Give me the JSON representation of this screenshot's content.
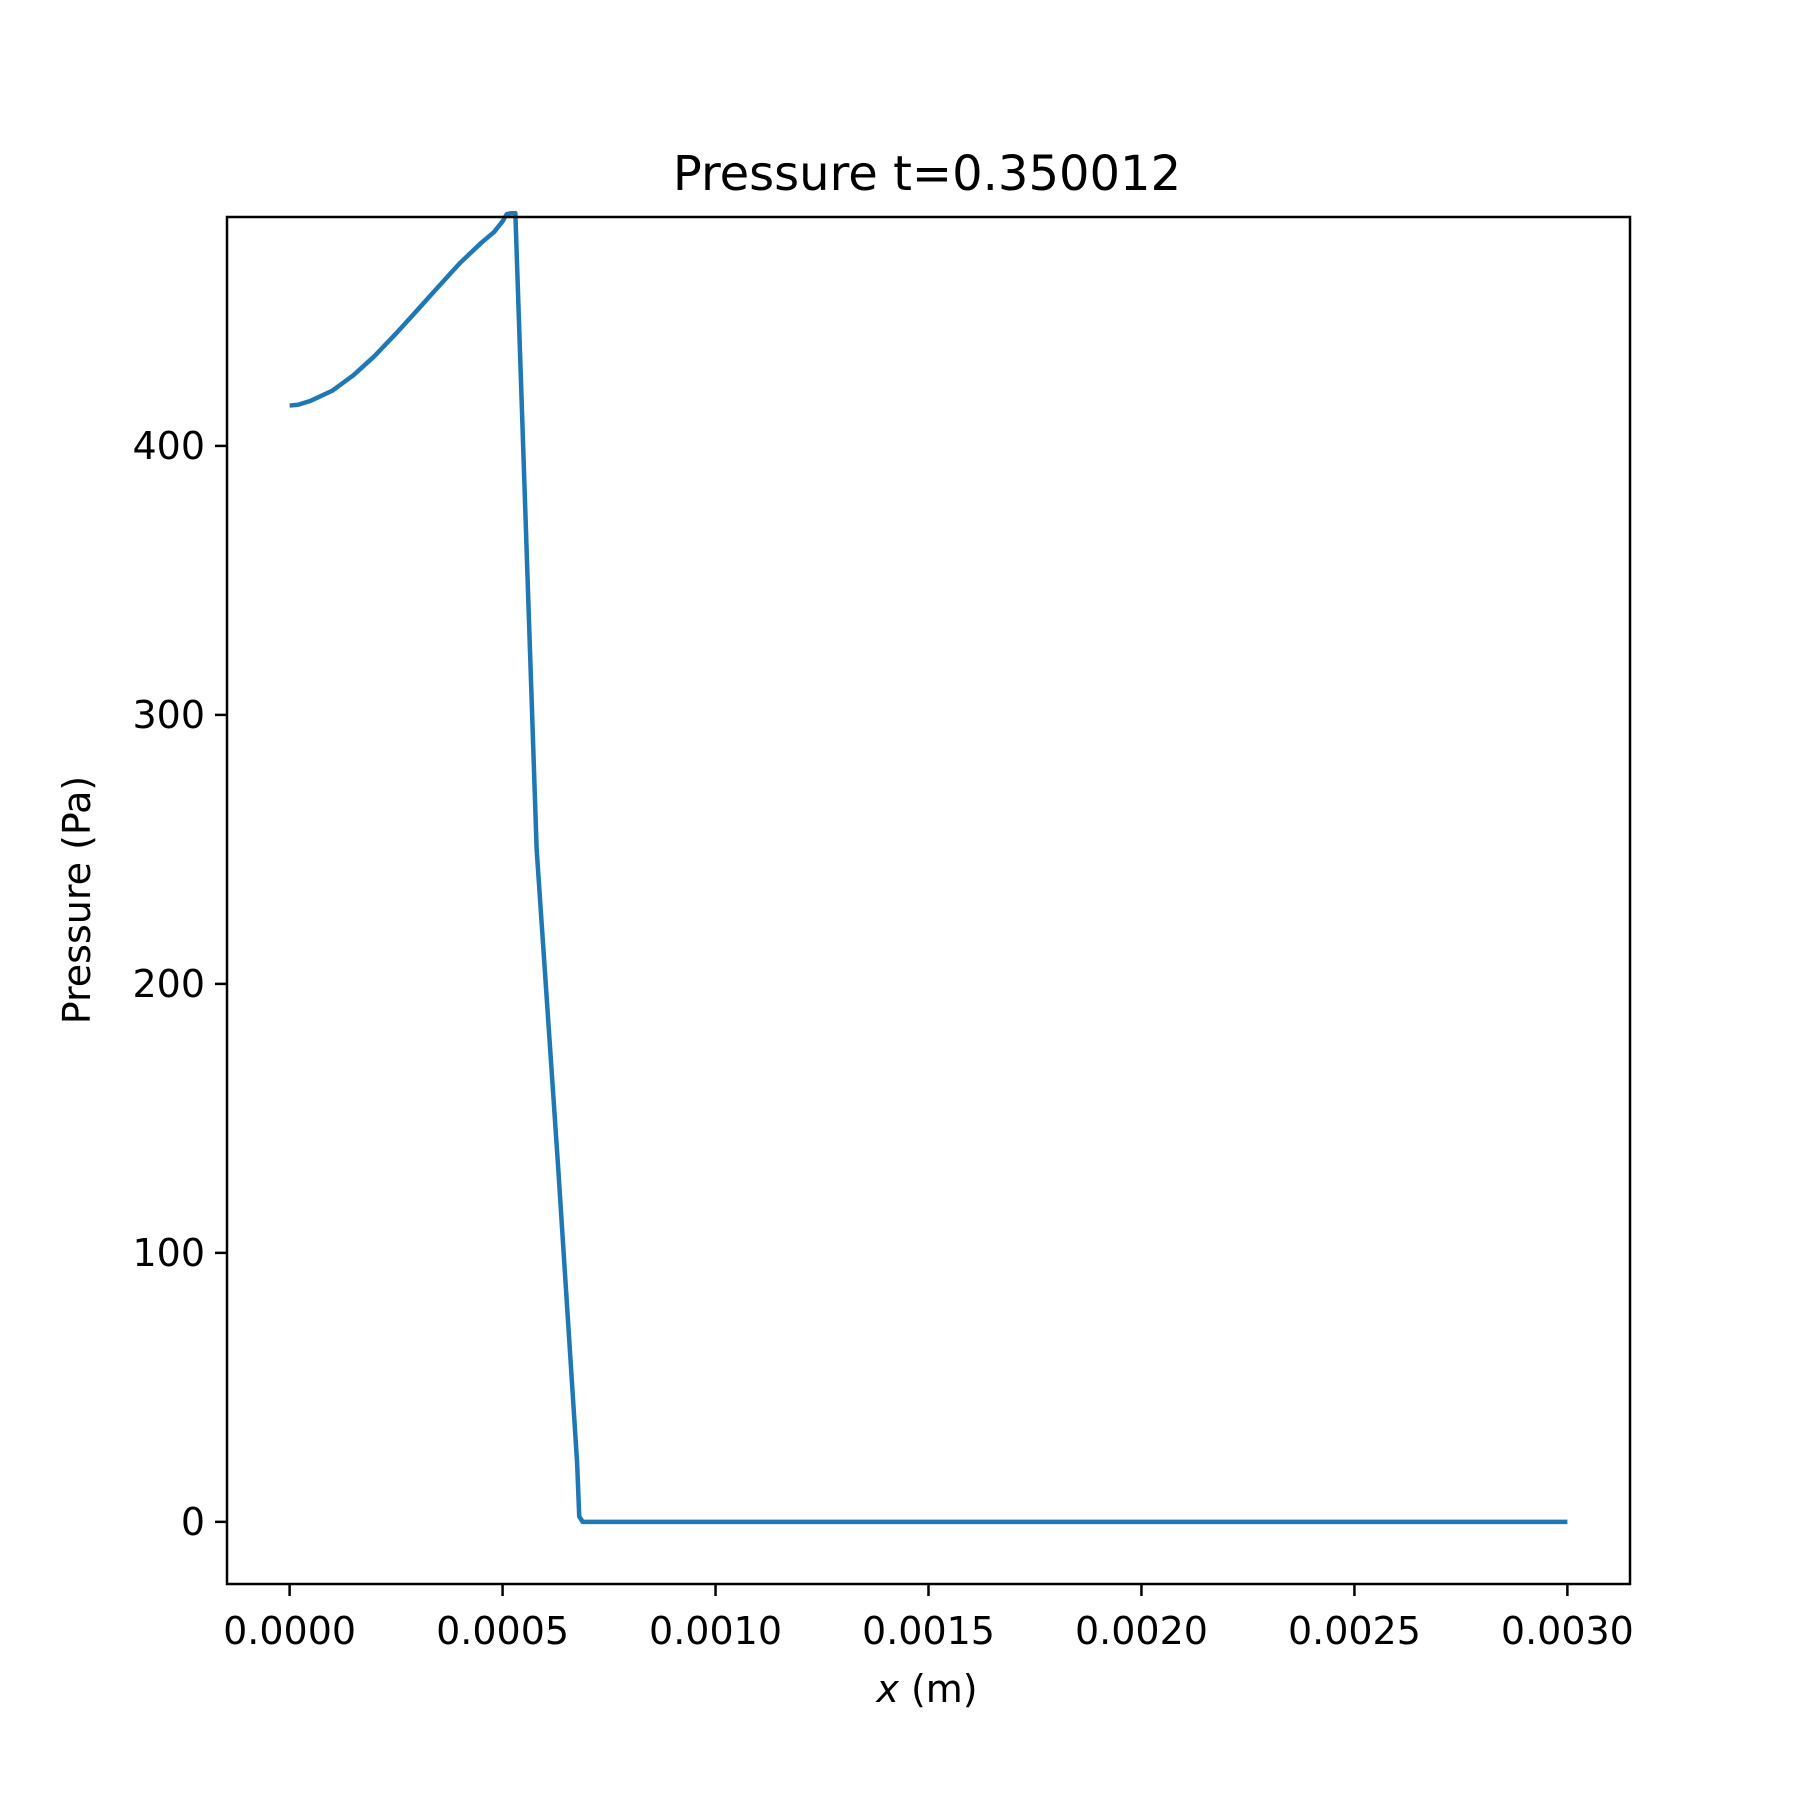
{
  "chart_data": {
    "type": "line",
    "title": "Pressure t=0.350012",
    "xlabel_var": "x",
    "xlabel_unit": " (m)",
    "ylabel": "Pressure (Pa)",
    "xlim": [
      -0.000147,
      0.003147
    ],
    "ylim": [
      -23.1,
      485.1
    ],
    "xticks": [
      0.0,
      0.0005,
      0.001,
      0.0015,
      0.002,
      0.0025,
      0.003
    ],
    "xtick_labels": [
      "0.0000",
      "0.0005",
      "0.0010",
      "0.0015",
      "0.0020",
      "0.0025",
      "0.0030"
    ],
    "yticks": [
      0,
      100,
      200,
      300,
      400
    ],
    "ytick_labels": [
      "0",
      "100",
      "200",
      "300",
      "400"
    ],
    "grid": false,
    "line_color": "#1f77b4",
    "series": [
      {
        "x": [
          0.0,
          2e-05,
          5e-05,
          0.0001,
          0.00015,
          0.0002,
          0.00025,
          0.0003,
          0.00035,
          0.0004,
          0.00045,
          0.00048,
          0.0005,
          0.00051,
          0.00052,
          0.00053,
          0.00058,
          0.00063,
          0.000675,
          0.00068,
          0.000688,
          0.0007,
          0.0008,
          0.001,
          0.0015,
          0.002,
          0.0025,
          0.003
        ],
        "y": [
          415,
          415.3,
          416.8,
          420.5,
          426.3,
          433.5,
          441.8,
          450.5,
          459.3,
          468,
          475.5,
          479.5,
          483.5,
          486.2,
          486.5,
          486.5,
          250,
          133,
          22,
          2,
          0,
          0,
          0,
          0,
          0,
          0,
          0,
          0
        ]
      }
    ]
  }
}
